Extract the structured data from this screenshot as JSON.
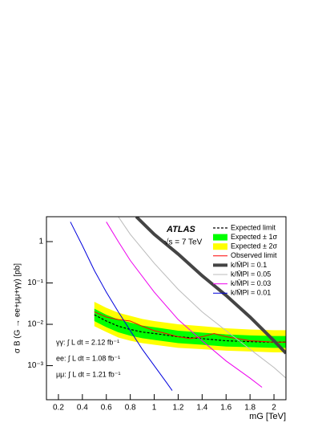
{
  "chart_data": {
    "type": "line",
    "ylabel": "σ B (G → ee+μμ+γγ) [pb]",
    "xlabel": "mG [TeV]",
    "annotations": [
      "ATLAS",
      "√s = 7 TeV",
      "γγ: ∫ L dt = 2.12 fb⁻¹",
      "ee: ∫ L dt = 1.08 fb⁻¹",
      "μμ: ∫ L dt = 1.21 fb⁻¹"
    ],
    "xlim": [
      0.1,
      2.1
    ],
    "ylim": [
      0.00015,
      4
    ],
    "ylog": true,
    "xticks": [
      0.2,
      0.4,
      0.6,
      0.8,
      1,
      1.2,
      1.4,
      1.6,
      1.8,
      2
    ],
    "yticks": [
      {
        "value": 0.001,
        "label": "10⁻³"
      },
      {
        "value": 0.01,
        "label": "10⁻²"
      },
      {
        "value": 0.1,
        "label": "10⁻¹"
      },
      1
    ],
    "bands": [
      {
        "name": "Expected ± 2σ",
        "color": "#ffff00",
        "x": [
          0.5,
          0.6,
          0.7,
          0.8,
          0.9,
          1.0,
          1.2,
          1.4,
          1.6,
          1.8,
          2.0,
          2.1
        ],
        "low": [
          0.009,
          0.0065,
          0.0048,
          0.004,
          0.0035,
          0.0032,
          0.0027,
          0.0025,
          0.0023,
          0.0022,
          0.0021,
          0.0021
        ],
        "high": [
          0.035,
          0.025,
          0.019,
          0.016,
          0.0135,
          0.012,
          0.01,
          0.009,
          0.008,
          0.0075,
          0.0072,
          0.0072
        ]
      },
      {
        "name": "Expected ± 1σ",
        "color": "#00ff00",
        "x": [
          0.5,
          0.6,
          0.7,
          0.8,
          0.9,
          1.0,
          1.2,
          1.4,
          1.6,
          1.8,
          2.0,
          2.1
        ],
        "low": [
          0.012,
          0.0085,
          0.0064,
          0.0053,
          0.0046,
          0.0042,
          0.0035,
          0.0032,
          0.0029,
          0.0028,
          0.0027,
          0.0027
        ],
        "high": [
          0.024,
          0.017,
          0.013,
          0.011,
          0.0093,
          0.0085,
          0.007,
          0.0063,
          0.0057,
          0.0054,
          0.0052,
          0.0052
        ]
      }
    ],
    "series": [
      {
        "name": "Expected limit",
        "color": "#000000",
        "dashed": true,
        "width": 1.2,
        "x": [
          0.5,
          0.6,
          0.7,
          0.8,
          0.9,
          1.0,
          1.2,
          1.4,
          1.6,
          1.8,
          2.0,
          2.1
        ],
        "values": [
          0.017,
          0.012,
          0.009,
          0.0075,
          0.0065,
          0.006,
          0.005,
          0.0045,
          0.004,
          0.0038,
          0.0037,
          0.0037
        ]
      },
      {
        "name": "Observed limit",
        "color": "#ff0000",
        "width": 1,
        "x": [
          0.5,
          0.6,
          0.7,
          0.8,
          0.9,
          1.0,
          1.1,
          1.2,
          1.3,
          1.4,
          1.5,
          1.6,
          1.8,
          2.0,
          2.1
        ],
        "values": [
          0.02,
          0.015,
          0.013,
          0.012,
          0.009,
          0.007,
          0.006,
          0.005,
          0.0045,
          0.005,
          0.006,
          0.005,
          0.004,
          0.0037,
          0.0037
        ]
      },
      {
        "name": "k/M̄Pl = 0.1",
        "color": "#444444",
        "width": 4,
        "x": [
          0.85,
          1.0,
          1.2,
          1.4,
          1.6,
          1.8,
          2.0,
          2.1
        ],
        "values": [
          4,
          1.5,
          0.5,
          0.15,
          0.05,
          0.015,
          0.004,
          0.002
        ]
      },
      {
        "name": "k/M̄Pl = 0.05",
        "color": "#bbbbbb",
        "width": 1,
        "x": [
          0.7,
          0.8,
          1.0,
          1.2,
          1.4,
          1.6,
          1.8,
          2.0,
          2.1
        ],
        "values": [
          4,
          1.5,
          0.3,
          0.07,
          0.02,
          0.007,
          0.0025,
          0.0009,
          0.0005
        ]
      },
      {
        "name": "k/M̄Pl = 0.03",
        "color": "#ee00ee",
        "width": 1,
        "x": [
          0.6,
          0.7,
          0.8,
          1.0,
          1.2,
          1.4,
          1.6,
          1.8,
          1.9
        ],
        "values": [
          3,
          1,
          0.35,
          0.06,
          0.013,
          0.004,
          0.0013,
          0.0005,
          0.0003
        ]
      },
      {
        "name": "k/M̄Pl = 0.01",
        "color": "#0000dd",
        "width": 1,
        "x": [
          0.3,
          0.4,
          0.5,
          0.6,
          0.7,
          0.8,
          0.9,
          1.0,
          1.1,
          1.15
        ],
        "values": [
          3,
          0.8,
          0.2,
          0.06,
          0.02,
          0.007,
          0.0025,
          0.001,
          0.0004,
          0.00025
        ]
      }
    ]
  }
}
